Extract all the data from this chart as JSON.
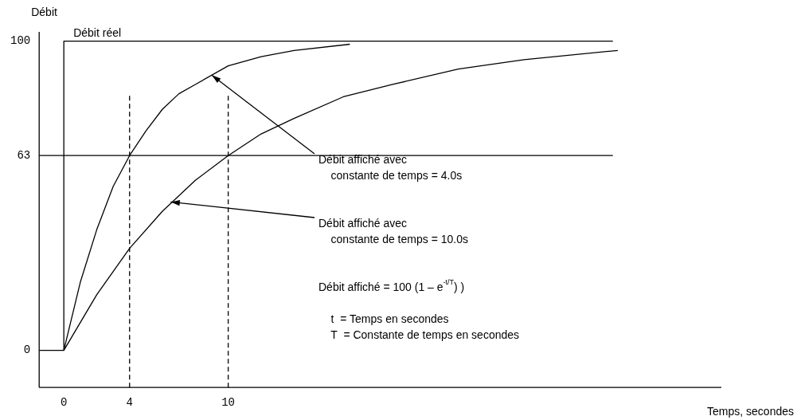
{
  "chart_data": {
    "type": "line",
    "xlabel": "Temps, secondes",
    "ylabel": "Débit",
    "xlim": [
      -1.5,
      40
    ],
    "ylim": [
      -12,
      103
    ],
    "xticks": [
      0,
      4,
      10
    ],
    "yticks": [
      0,
      63,
      100
    ],
    "grid": false,
    "legend": false,
    "marker": "none",
    "line_style": "solid",
    "series": [
      {
        "name": "Débit réel",
        "color": "#000000",
        "x": [
          -1.5,
          0,
          0,
          33.4
        ],
        "values": [
          0,
          0,
          100,
          100
        ]
      },
      {
        "color": "#000000",
        "x": [
          0,
          1,
          2,
          3,
          4,
          5,
          6,
          7,
          8,
          10,
          12,
          14,
          17.4
        ],
        "values": [
          0,
          22,
          39,
          53,
          63,
          71,
          78,
          83,
          86,
          92,
          95,
          97,
          99
        ]
      },
      {
        "color": "#000000",
        "x": [
          0,
          2,
          4,
          6,
          8,
          10,
          12,
          14,
          17,
          20,
          24,
          28,
          33.7
        ],
        "values": [
          0,
          18,
          33,
          45,
          55,
          63,
          70,
          75,
          82,
          86,
          91,
          94,
          97
        ]
      }
    ],
    "ref_lines": [
      {
        "axis": "y",
        "value": 63,
        "color": "#000000",
        "line_style": "solid"
      },
      {
        "axis": "x",
        "value": 4,
        "color": "#000000",
        "line_style": "dashed"
      },
      {
        "axis": "x",
        "value": 10,
        "color": "#000000",
        "line_style": "dashed"
      }
    ],
    "annotations": [
      {
        "text": "Débit affiché avec\n    constante de temps = 4.0s",
        "x": 9,
        "y": 89
      },
      {
        "text": "Débit affiché avec\n    constante de temps = 10.0s",
        "x": 6.5,
        "y": 48
      },
      "Débit affiché = 100 (1 – e$^{-t/T}$) )",
      "    t  = Temps en secondes\n    T  = Constante de temps en secondes"
    ]
  }
}
